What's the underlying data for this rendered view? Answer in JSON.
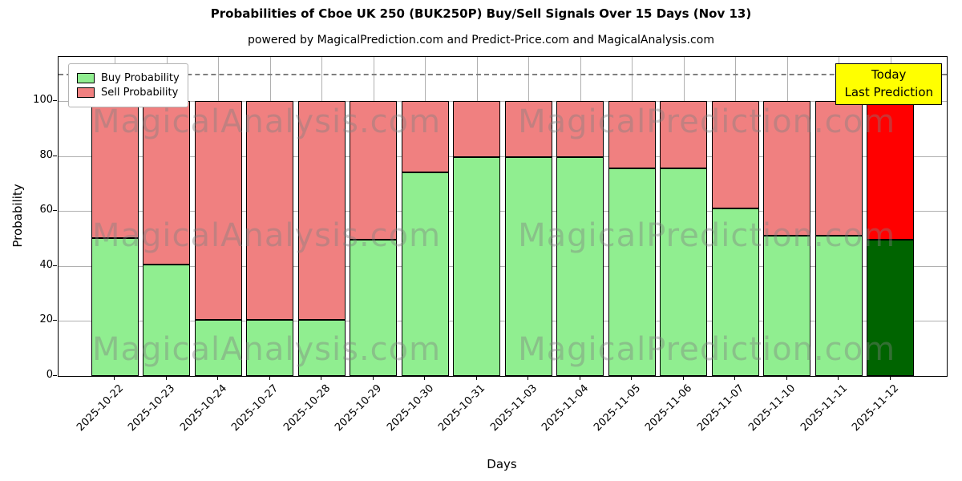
{
  "title": "Probabilities of Cboe UK 250 (BUK250P) Buy/Sell Signals Over 15 Days (Nov 13)",
  "subtitle": "powered by MagicalPrediction.com and Predict-Price.com and MagicalAnalysis.com",
  "legend": {
    "buy_label": "Buy Probability",
    "sell_label": "Sell Probability"
  },
  "annotation": {
    "line1": "Today",
    "line2": "Last Prediction"
  },
  "watermarks": [
    "MagicalAnalysis.com",
    "MagicalPrediction.com"
  ],
  "chart_data": {
    "type": "bar",
    "stacked": true,
    "title": "Probabilities of Cboe UK 250 (BUK250P) Buy/Sell Signals Over 15 Days (Nov 13)",
    "xlabel": "Days",
    "ylabel": "Probability",
    "categories": [
      "2025-10-22",
      "2025-10-23",
      "2025-10-24",
      "2025-10-27",
      "2025-10-28",
      "2025-10-29",
      "2025-10-30",
      "2025-10-31",
      "2025-11-03",
      "2025-11-04",
      "2025-11-05",
      "2025-11-06",
      "2025-11-07",
      "2025-11-10",
      "2025-11-11",
      "2025-11-12"
    ],
    "series": [
      {
        "name": "Buy Probability",
        "color": "#90ee90",
        "values": [
          50,
          40.5,
          20.5,
          20.5,
          20.5,
          49.5,
          74,
          79.5,
          79.5,
          79.5,
          75.5,
          75.5,
          61,
          51,
          51,
          49.5
        ]
      },
      {
        "name": "Sell Probability",
        "color": "#f08080",
        "values": [
          50,
          59.5,
          79.5,
          79.5,
          79.5,
          50.5,
          26,
          20.5,
          20.5,
          20.5,
          24.5,
          24.5,
          39,
          49,
          49,
          50.5
        ]
      }
    ],
    "last_bar_colors": {
      "buy": "#006400",
      "sell": "#ff0000"
    },
    "ylim": [
      0,
      116
    ],
    "yticks": [
      0,
      20,
      40,
      60,
      80,
      100
    ],
    "dashed_line_y": 110,
    "grid": true,
    "legend_position": "upper left"
  }
}
